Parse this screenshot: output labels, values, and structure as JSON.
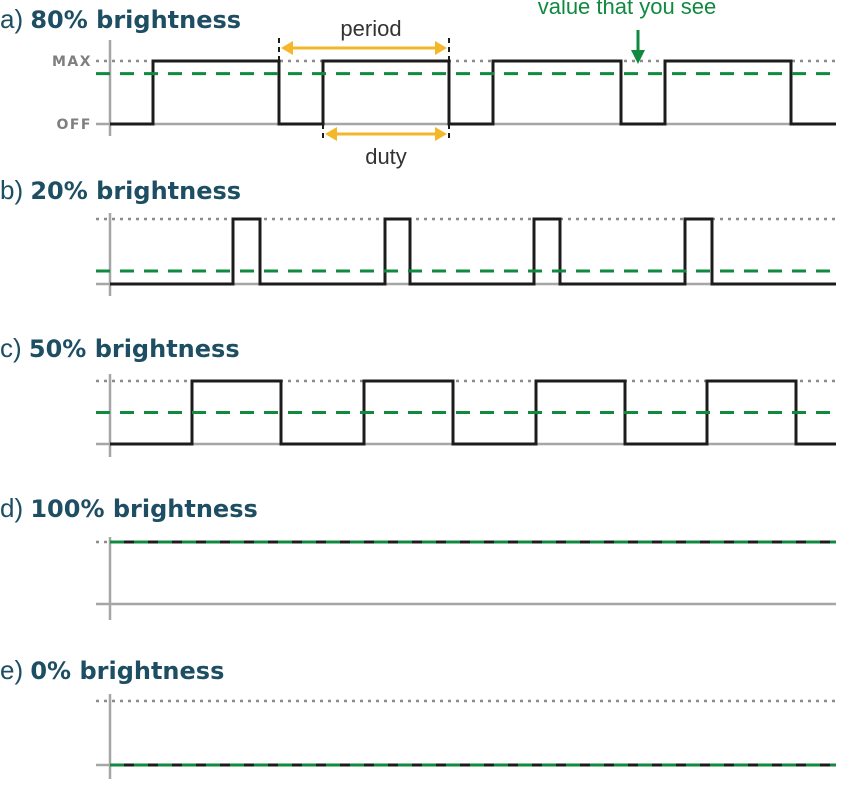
{
  "colors": {
    "signal": "#1c1c1c",
    "average": "#0f8a3f",
    "axis": "#a6a6a6",
    "max_dotted": "#8c8c8c",
    "title": "#1d4e63",
    "annotation_arrow": "#f5b72a",
    "level_label": "#7f7f7f"
  },
  "annotations": {
    "value_seen": "value that you see",
    "period": "period",
    "duty": "duty",
    "max_label": "MAX",
    "off_label": "OFF"
  },
  "panels": [
    {
      "prefix": "a)",
      "title": "80% brightness",
      "duty_fraction": 0.8
    },
    {
      "prefix": "b)",
      "title": "20% brightness",
      "duty_fraction": 0.2
    },
    {
      "prefix": "c)",
      "title": "50% brightness",
      "duty_fraction": 0.5
    },
    {
      "prefix": "d)",
      "title": "100% brightness",
      "duty_fraction": 1.0
    },
    {
      "prefix": "e)",
      "title": "0% brightness",
      "duty_fraction": 0.0
    }
  ]
}
